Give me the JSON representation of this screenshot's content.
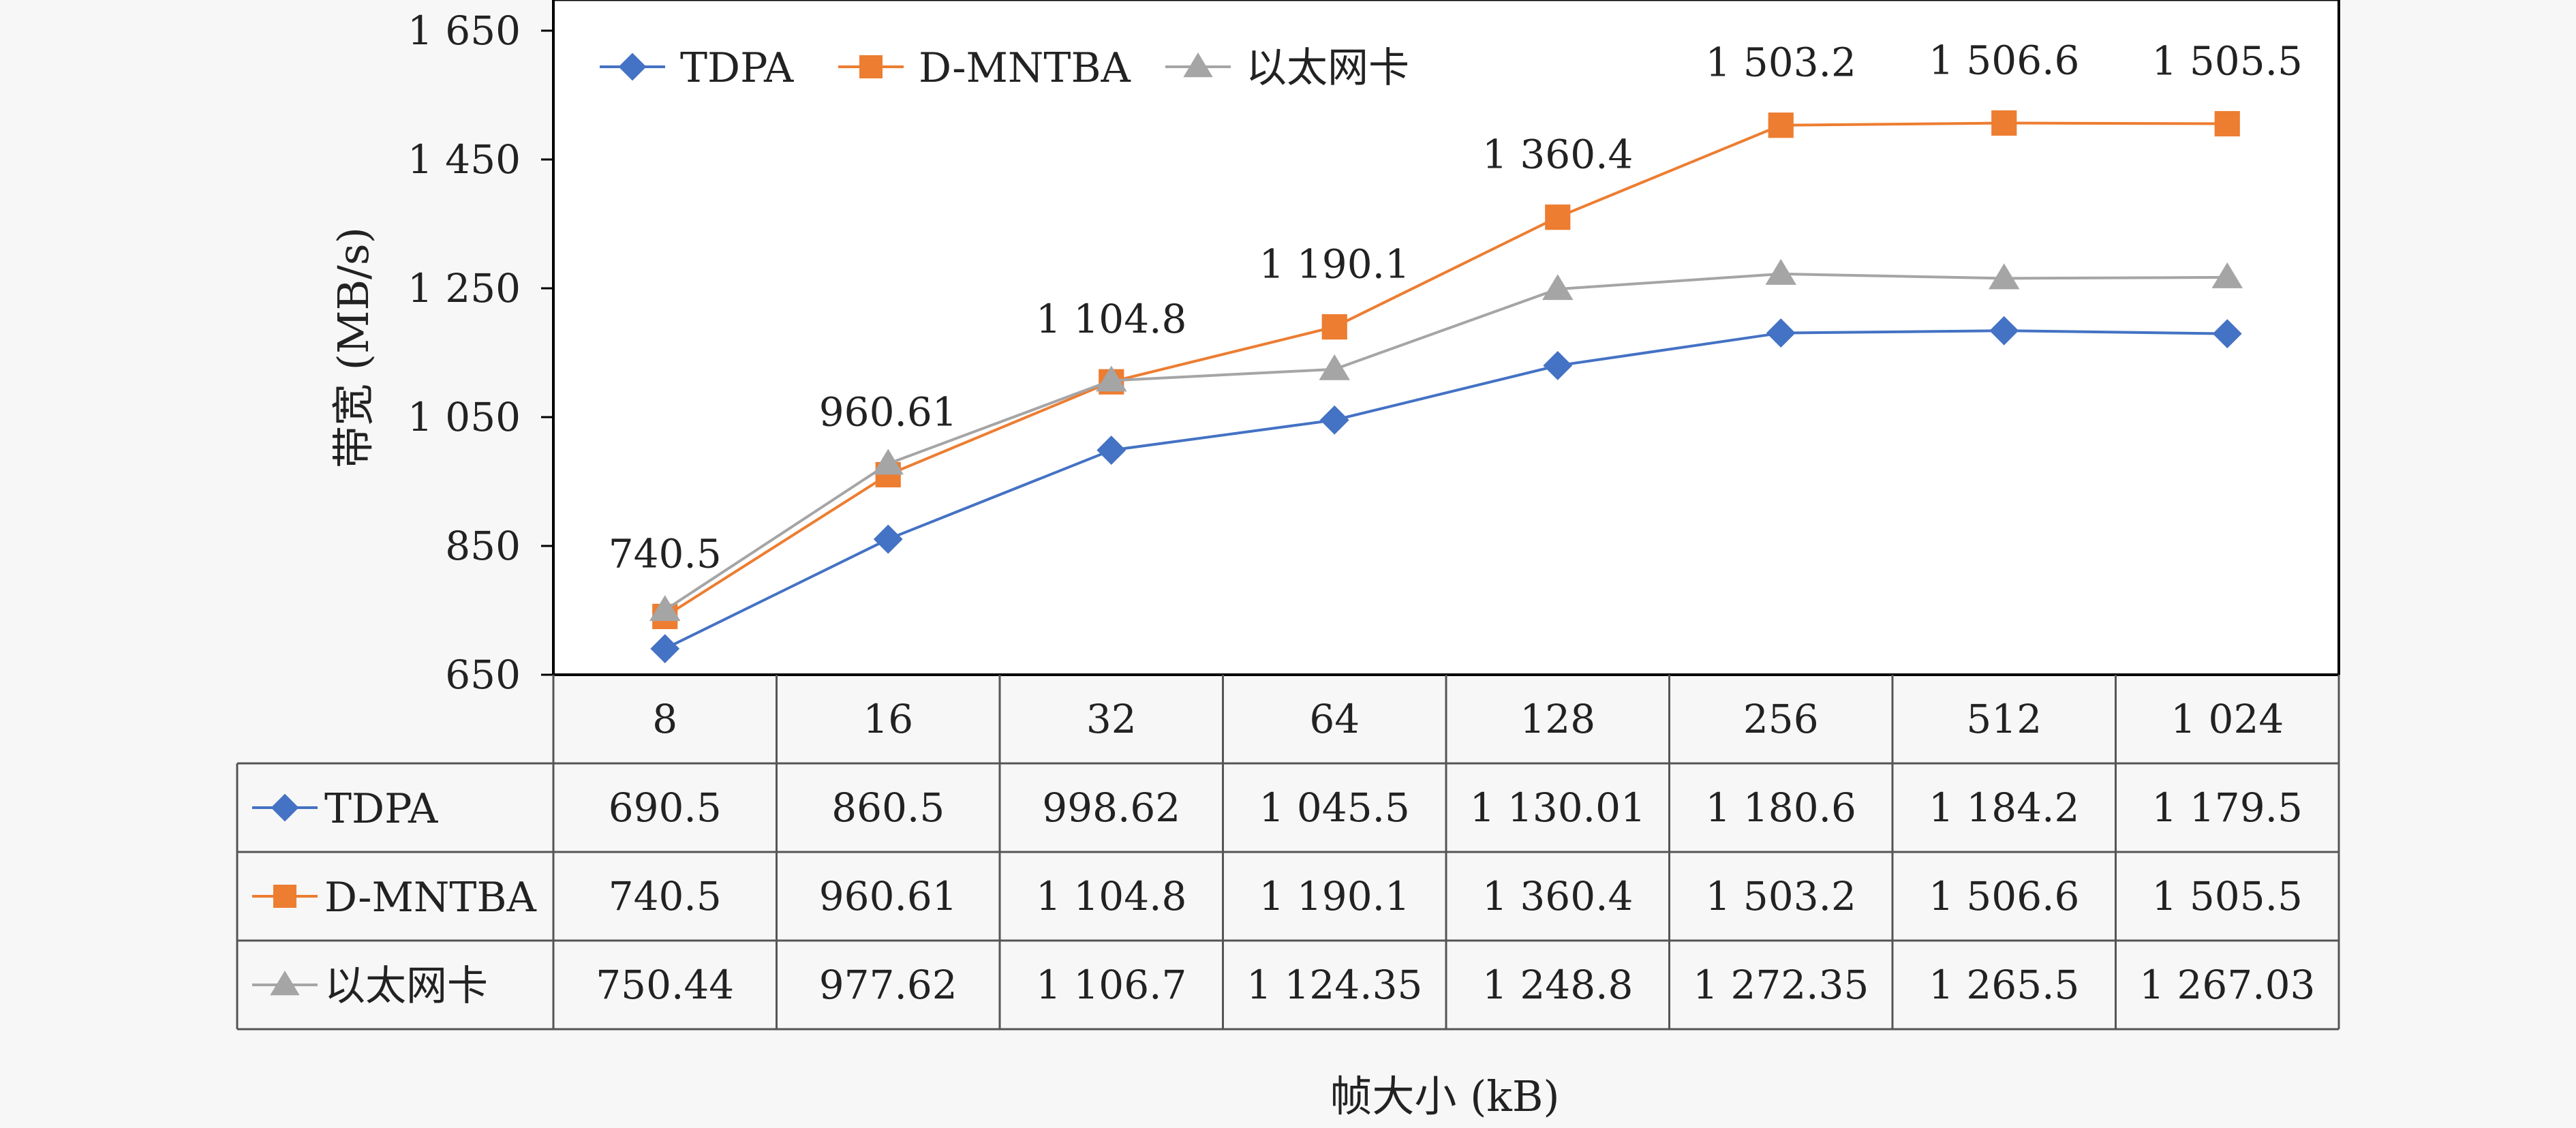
{
  "chart_data": {
    "type": "line",
    "title": "",
    "xlabel": "帧大小 (kB)",
    "ylabel": "带宽 (MB/s)",
    "ylim": [
      650,
      1650
    ],
    "yticks": [
      "1 650",
      "1 450",
      "1 250",
      "1 050",
      "850",
      "650"
    ],
    "ytick_values": [
      1650,
      1450,
      1250,
      1050,
      850,
      650
    ],
    "categories": [
      "8",
      "16",
      "32",
      "64",
      "128",
      "256",
      "512",
      "1 024"
    ],
    "legend_position": "top-left",
    "grid": false,
    "series": [
      {
        "name": "TDPA",
        "marker": "diamond",
        "color": "#4472C4",
        "values": [
          690.5,
          860.5,
          998.62,
          1045.5,
          1130.01,
          1180.6,
          1184.2,
          1179.5
        ],
        "table_labels": [
          "690.5",
          "860.5",
          "998.62",
          "1 045.5",
          "1 130.01",
          "1 180.6",
          "1 184.2",
          "1 179.5"
        ]
      },
      {
        "name": "D-MNTBA",
        "marker": "square",
        "color": "#ED7D31",
        "values": [
          740.5,
          960.61,
          1104.8,
          1190.1,
          1360.4,
          1503.2,
          1506.6,
          1505.5
        ],
        "table_labels": [
          "740.5",
          "960.61",
          "1 104.8",
          "1 190.1",
          "1 360.4",
          "1 503.2",
          "1 506.6",
          "1 505.5"
        ]
      },
      {
        "name": "以太网卡",
        "marker": "triangle",
        "color": "#A5A5A5",
        "values": [
          750.44,
          977.62,
          1106.7,
          1124.35,
          1248.8,
          1272.35,
          1265.5,
          1267.03
        ],
        "table_labels": [
          "750.44",
          "977.62",
          "1 106.7",
          "1 124.35",
          "1 248.8",
          "1 272.35",
          "1 265.5",
          "1 267.03"
        ]
      }
    ],
    "data_labels": {
      "series_index": 1,
      "labels": [
        "740.5",
        "960.61",
        "1 104.8",
        "1 190.1",
        "1 360.4",
        "1 503.2",
        "1 506.6",
        "1 505.5"
      ]
    }
  }
}
